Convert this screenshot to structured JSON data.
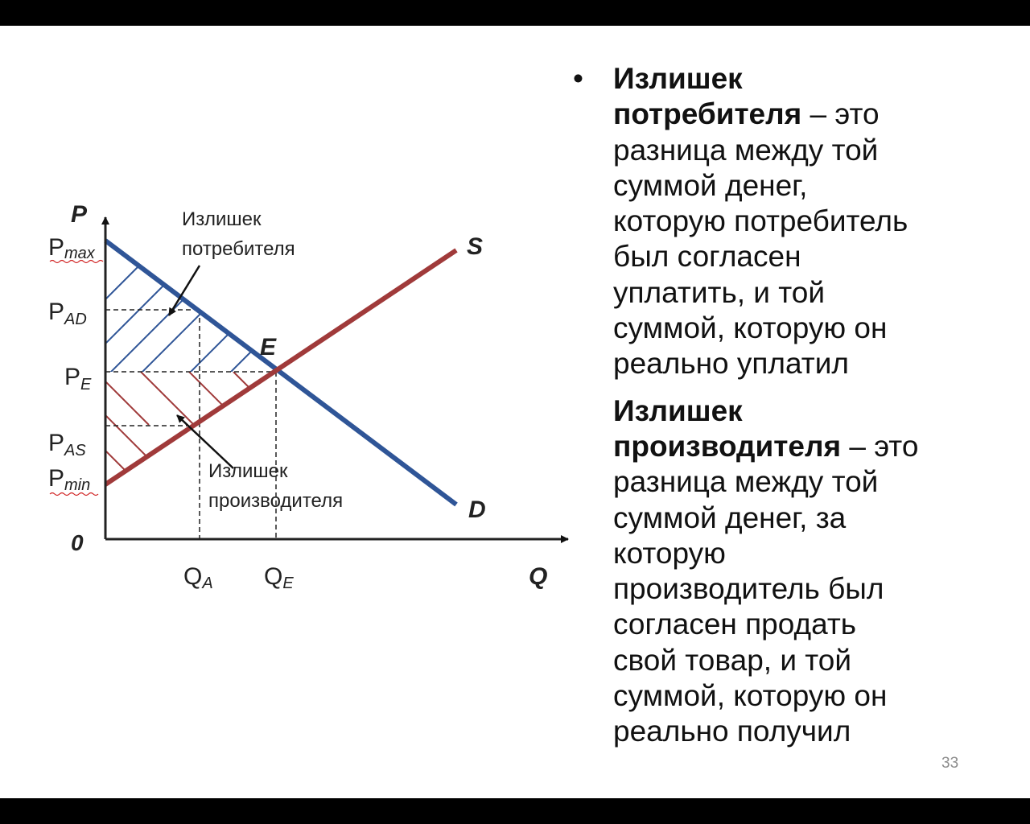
{
  "diagram": {
    "axis_p": "P",
    "axis_q": "Q",
    "origin": "0",
    "p_max": {
      "base": "P",
      "sub": "max"
    },
    "p_ad": {
      "base": "P",
      "sub": "AD"
    },
    "p_e": {
      "base": "P",
      "sub": "E"
    },
    "p_as": {
      "base": "P",
      "sub": "AS"
    },
    "p_min": {
      "base": "P",
      "sub": "min"
    },
    "q_a": {
      "base": "Q",
      "sub": "A"
    },
    "q_e": {
      "base": "Q",
      "sub": "E"
    },
    "supply_label": "S",
    "demand_label": "D",
    "equilibrium_label": "E",
    "consumer_surplus_label": [
      "Излишек",
      "потребителя"
    ],
    "producer_surplus_label": [
      "Излишек",
      "производителя"
    ],
    "colors": {
      "demand": "#2f5597",
      "supply": "#a03a3a",
      "axes": "#222222"
    }
  },
  "text": {
    "bullet": "•",
    "consumer": {
      "term_lines": [
        "Излишек",
        "потребителя"
      ],
      "lines": [
        " – это",
        "разница между той",
        "суммой денег,",
        "которую потребитель",
        "был согласен",
        "уплатить, и той",
        "суммой, которую он",
        "реально уплатил"
      ]
    },
    "producer": {
      "term_lines": [
        "Излишек",
        "производителя"
      ],
      "lines": [
        " – это",
        "разница между той",
        "суммой денег, за",
        "которую",
        "производитель был",
        "согласен продать",
        "свой товар, и той",
        "суммой, которую он",
        "реально получил"
      ]
    }
  },
  "page_number": "33"
}
